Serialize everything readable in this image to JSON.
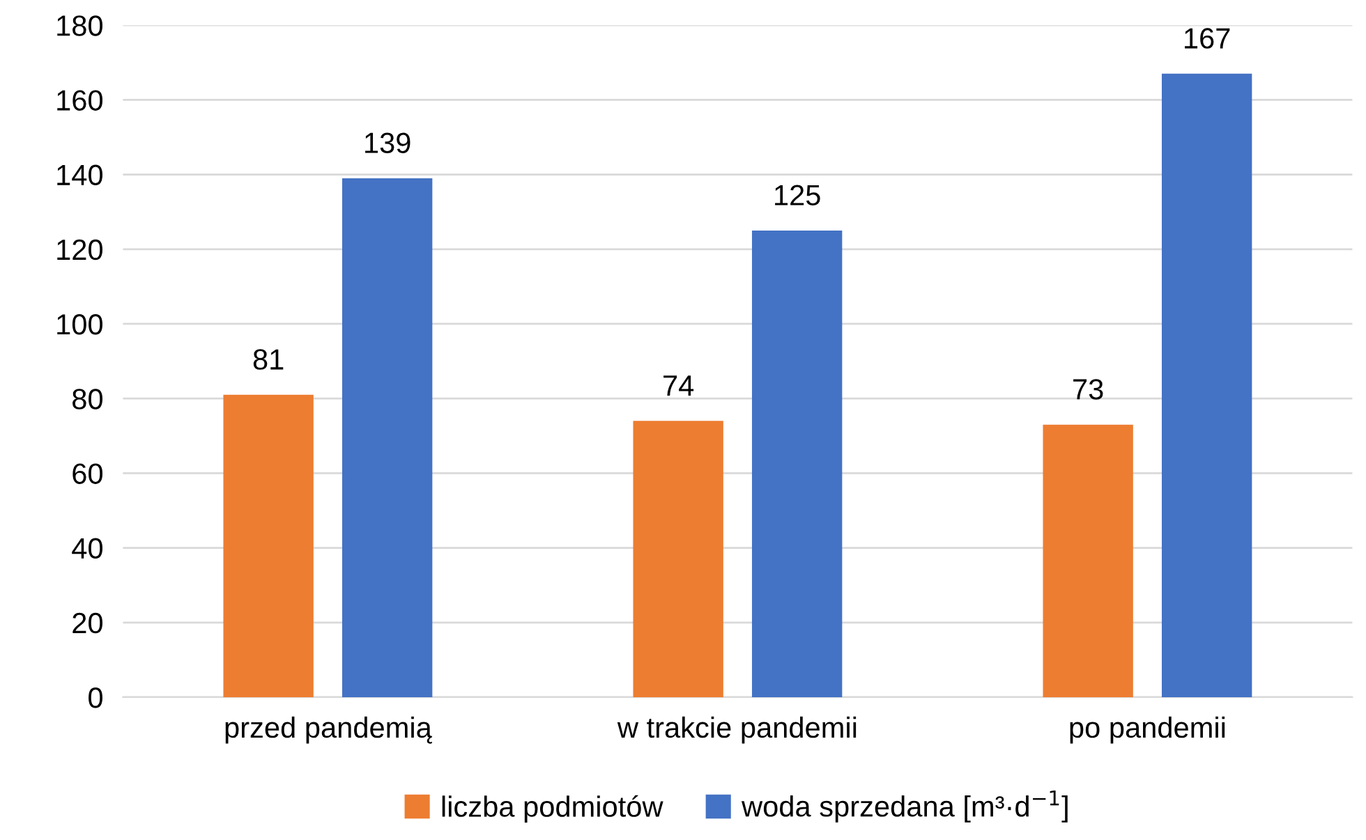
{
  "chart_data": {
    "type": "bar",
    "categories": [
      "przed pandemią",
      "w trakcie pandemii",
      "po pandemii"
    ],
    "series": [
      {
        "name": "liczba podmiotów",
        "color": "#ed7d31",
        "values": [
          81,
          74,
          73
        ]
      },
      {
        "name": "woda sprzedana [m³·d$^{−1}$]",
        "color": "#4472c4",
        "values": [
          139,
          125,
          167
        ]
      }
    ],
    "ylim": [
      0,
      180
    ],
    "yticks": [
      0,
      20,
      40,
      60,
      80,
      100,
      120,
      140,
      160,
      180
    ],
    "grid": "y",
    "legend": "bottom",
    "data_labels": true
  }
}
